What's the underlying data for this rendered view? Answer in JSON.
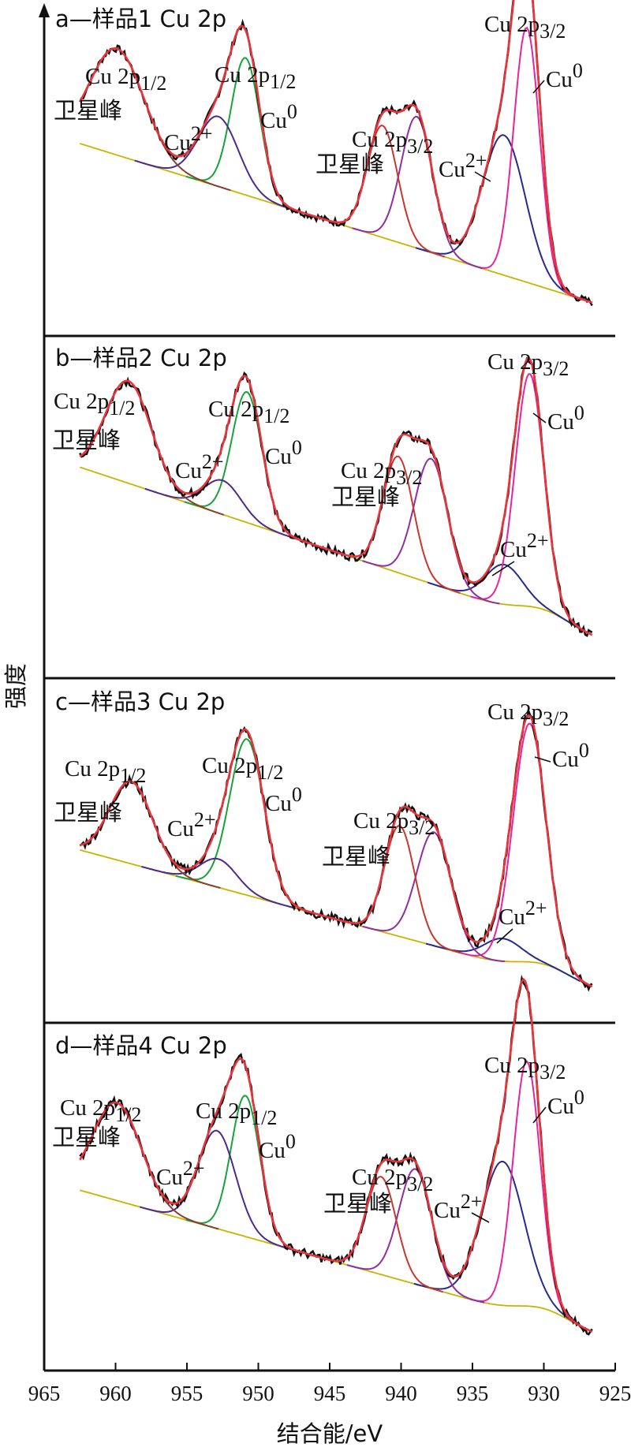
{
  "chart_data": {
    "type": "line",
    "xlabel": "结合能/eV",
    "ylabel": "强度",
    "xlim": [
      965,
      925
    ],
    "xticks": [
      965,
      960,
      955,
      950,
      945,
      940,
      935,
      930,
      925
    ],
    "colors": {
      "raw": "#111111",
      "fit": "#e8343a",
      "background": "#c8b400",
      "satellite": "#8a3f2c",
      "cu0_p12": "#18a23c",
      "cu2_p12": "#4a2a8c",
      "cu0_p32": "#e5249f",
      "cu2_p32": "#262a8f",
      "sat_p32_a": "#c8372d",
      "sat_p32_b": "#8e2fa0"
    },
    "panels": [
      {
        "title": "a—样品1 Cu 2p",
        "labels": [
          "Cu 2p1/2 卫星峰",
          "Cu2+",
          "Cu 2p1/2",
          "Cu0",
          "Cu 2p3/2 卫星峰",
          "Cu2+",
          "Cu 2p3/2",
          "Cu0"
        ],
        "baseline": {
          "start": 0.6,
          "end": 0.03
        },
        "raw_noise": 0.012,
        "peaks": [
          {
            "component": "cu2_p32",
            "center": 932.8,
            "width": 1.5,
            "height": 0.5
          },
          {
            "component": "cu0_p32",
            "center": 931.2,
            "width": 0.9,
            "height": 0.91
          },
          {
            "component": "sat_p32_b",
            "center": 938.9,
            "width": 1.1,
            "height": 0.47
          },
          {
            "component": "sat_p32_a",
            "center": 941.3,
            "width": 1.05,
            "height": 0.4
          },
          {
            "component": "cu0_p12",
            "center": 950.9,
            "width": 1.0,
            "height": 0.49
          },
          {
            "component": "cu2_p12",
            "center": 952.8,
            "width": 1.4,
            "height": 0.25
          },
          {
            "component": "satellite",
            "center": 959.9,
            "width": 1.9,
            "height": 0.38
          }
        ]
      },
      {
        "title": "b—样品2 Cu 2p",
        "labels": [
          "Cu 2p1/2 卫星峰",
          "Cu2+",
          "Cu 2p1/2",
          "Cu0",
          "Cu 2p3/2 卫星峰",
          "Cu2+",
          "Cu 2p3/2"
        ],
        "baseline": {
          "start": 0.66,
          "end": 0.06
        },
        "raw_noise": 0.014,
        "peaks": [
          {
            "component": "cu2_p32",
            "center": 932.8,
            "width": 1.3,
            "height": 0.14
          },
          {
            "component": "cu0_p32",
            "center": 931.0,
            "width": 1.0,
            "height": 0.82
          },
          {
            "component": "sat_p32_b",
            "center": 937.9,
            "width": 1.15,
            "height": 0.44
          },
          {
            "component": "sat_p32_a",
            "center": 940.2,
            "width": 1.05,
            "height": 0.41
          },
          {
            "component": "cu0_p12",
            "center": 950.8,
            "width": 1.05,
            "height": 0.46
          },
          {
            "component": "cu2_p12",
            "center": 952.5,
            "width": 1.3,
            "height": 0.12
          },
          {
            "component": "satellite",
            "center": 959.1,
            "width": 1.6,
            "height": 0.36
          }
        ]
      },
      {
        "title": "c—样品3 Cu 2p",
        "labels": [
          "Cu 2p1/2 卫星峰",
          "Cu2+",
          "Cu 2p1/2",
          "Cu0",
          "Cu 2p3/2 卫星峰",
          "Cu2+",
          "Cu 2p3/2",
          "Cu0"
        ],
        "baseline": {
          "start": 0.52,
          "end": 0.03
        },
        "raw_noise": 0.014,
        "peaks": [
          {
            "component": "cu2_p32",
            "center": 932.9,
            "width": 1.3,
            "height": 0.08
          },
          {
            "component": "cu0_p32",
            "center": 931.0,
            "width": 1.15,
            "height": 0.84
          },
          {
            "component": "sat_p32_b",
            "center": 937.7,
            "width": 1.2,
            "height": 0.4
          },
          {
            "component": "sat_p32_a",
            "center": 940.1,
            "width": 1.05,
            "height": 0.39
          },
          {
            "component": "cu0_p12",
            "center": 950.8,
            "width": 1.2,
            "height": 0.55
          },
          {
            "component": "cu2_p12",
            "center": 952.8,
            "width": 1.3,
            "height": 0.1
          },
          {
            "component": "satellite",
            "center": 958.9,
            "width": 1.5,
            "height": 0.29
          }
        ]
      },
      {
        "title": "d—样品4 Cu 2p",
        "labels": [
          "Cu 2p1/2 卫星峰",
          "Cu2+",
          "Cu 2p1/2",
          "Cu0",
          "Cu 2p3/2 卫星峰",
          "Cu2+",
          "Cu 2p3/2",
          "Cu0"
        ],
        "baseline": {
          "start": 0.55,
          "end": 0.05
        },
        "raw_noise": 0.014,
        "peaks": [
          {
            "component": "cu2_p32",
            "center": 932.9,
            "width": 1.5,
            "height": 0.5
          },
          {
            "component": "cu0_p32",
            "center": 931.2,
            "width": 0.95,
            "height": 0.85
          },
          {
            "component": "sat_p32_b",
            "center": 939.0,
            "width": 1.15,
            "height": 0.4
          },
          {
            "component": "sat_p32_a",
            "center": 941.4,
            "width": 1.05,
            "height": 0.34
          },
          {
            "component": "cu0_p12",
            "center": 950.9,
            "width": 1.0,
            "height": 0.49
          },
          {
            "component": "cu2_p12",
            "center": 952.9,
            "width": 1.3,
            "height": 0.34
          },
          {
            "component": "satellite",
            "center": 959.9,
            "width": 1.7,
            "height": 0.34
          }
        ]
      }
    ]
  }
}
